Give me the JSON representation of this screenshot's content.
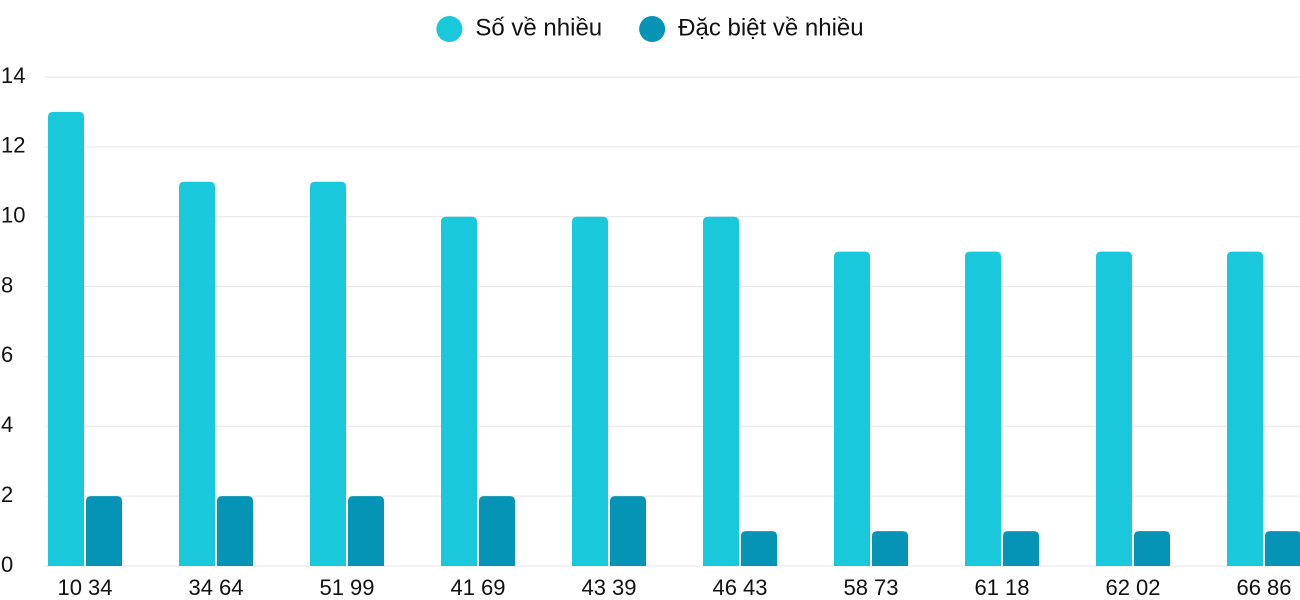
{
  "chart_data": {
    "type": "bar",
    "categories": [
      "10 34",
      "34 64",
      "51 99",
      "41 69",
      "43 39",
      "46 43",
      "58 73",
      "61 18",
      "62 02",
      "66 86"
    ],
    "series": [
      {
        "name": "Số về nhiều",
        "color": "#1ac8db",
        "values": [
          13,
          11,
          11,
          10,
          10,
          10,
          9,
          9,
          9,
          9
        ]
      },
      {
        "name": "Đặc biệt về nhiều",
        "color": "#0694b6",
        "values": [
          2,
          2,
          2,
          2,
          2,
          1,
          1,
          1,
          1,
          1
        ]
      }
    ],
    "ylim": [
      0,
      14
    ],
    "yticks": [
      0,
      2,
      4,
      6,
      8,
      10,
      12,
      14
    ],
    "grid": true,
    "legend": "top"
  }
}
